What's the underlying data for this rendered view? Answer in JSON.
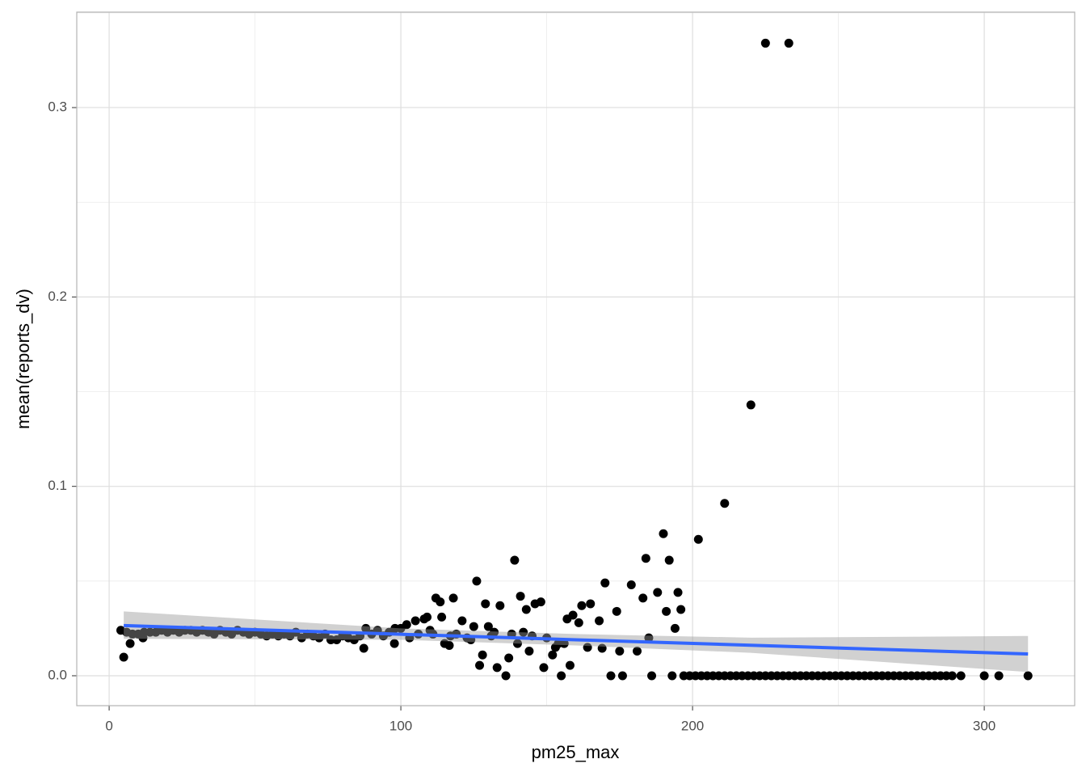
{
  "chart_data": {
    "type": "scatter",
    "x_label": "pm25_max",
    "y_label": "mean(reports_dv)",
    "xlim": [
      -11.1,
      331
    ],
    "ylim": [
      -0.0158,
      0.3504
    ],
    "xticks": [
      0,
      100,
      200,
      300
    ],
    "yticks": [
      {
        "value": 0,
        "label": "0.0"
      },
      0.1,
      0.2,
      0.3
    ],
    "grid": true,
    "color": "#000000",
    "x": [
      4,
      6,
      8,
      10,
      12,
      14,
      16,
      18,
      20,
      22,
      24,
      26,
      28,
      30,
      32,
      34,
      36,
      38,
      40,
      42,
      44,
      46,
      48,
      50,
      52,
      54,
      56,
      58,
      60,
      62,
      64,
      66,
      68,
      70,
      72,
      74,
      76,
      78,
      80,
      82,
      84,
      86,
      88,
      90,
      92,
      94,
      96,
      98,
      5,
      7.2,
      11.6,
      87.3,
      97.8,
      103,
      105,
      108,
      109,
      112,
      113.5,
      114,
      115,
      116.6,
      118,
      121,
      122.7,
      125,
      126,
      127,
      128,
      129,
      130,
      132,
      133,
      134,
      136,
      137,
      138,
      139,
      140,
      141,
      142,
      143,
      144,
      146,
      148,
      149,
      152,
      154,
      155,
      156,
      157,
      158,
      159,
      161,
      162,
      164,
      165,
      168,
      169,
      170,
      172,
      174,
      175,
      176,
      179,
      181,
      183,
      184,
      185,
      186,
      188,
      190,
      191,
      192,
      193,
      194,
      195,
      196,
      202,
      211,
      220,
      225,
      233,
      100,
      102,
      106,
      110,
      111,
      117,
      119,
      124,
      131,
      145,
      150,
      153,
      197,
      199,
      201,
      203,
      205,
      207,
      209,
      211,
      213,
      215,
      217,
      219,
      221,
      223,
      225,
      227,
      229,
      231,
      233,
      235,
      237,
      239,
      241,
      243,
      245,
      247,
      249,
      251,
      253,
      255,
      257,
      259,
      261,
      263,
      265,
      267,
      269,
      271,
      273,
      275,
      277,
      279,
      281,
      283,
      285,
      287,
      289,
      292,
      300,
      305,
      315
    ],
    "values": [
      0.024,
      0.023,
      0.022,
      0.022,
      0.023,
      0.023,
      0.023,
      0.024,
      0.023,
      0.024,
      0.023,
      0.024,
      0.024,
      0.023,
      0.024,
      0.023,
      0.022,
      0.024,
      0.023,
      0.022,
      0.024,
      0.023,
      0.022,
      0.023,
      0.022,
      0.021,
      0.022,
      0.021,
      0.022,
      0.021,
      0.023,
      0.02,
      0.022,
      0.021,
      0.02,
      0.022,
      0.019,
      0.019,
      0.021,
      0.02,
      0.019,
      0.021,
      0.025,
      0.022,
      0.024,
      0.021,
      0.023,
      0.025,
      0.0098,
      0.017,
      0.02,
      0.0145,
      0.017,
      0.02,
      0.029,
      0.03,
      0.031,
      0.041,
      0.039,
      0.031,
      0.017,
      0.016,
      0.041,
      0.029,
      0.02,
      0.026,
      0.05,
      0.0055,
      0.011,
      0.038,
      0.026,
      0.023,
      0.0043,
      0.037,
      0,
      0.0094,
      0.022,
      0.061,
      0.017,
      0.042,
      0.023,
      0.035,
      0.013,
      0.038,
      0.039,
      0.0043,
      0.011,
      0.017,
      0,
      0.017,
      0.03,
      0.0055,
      0.032,
      0.028,
      0.037,
      0.015,
      0.038,
      0.029,
      0.0145,
      0.049,
      0,
      0.034,
      0.013,
      0,
      0.048,
      0.013,
      0.041,
      0.062,
      0.02,
      0,
      0.044,
      0.075,
      0.034,
      0.061,
      0,
      0.025,
      0.044,
      0.035,
      0.072,
      0.091,
      0.143,
      0.334,
      0.334,
      0.025,
      0.027,
      0.022,
      0.024,
      0.022,
      0.021,
      0.022,
      0.019,
      0.021,
      0.021,
      0.02,
      0.015,
      0,
      0,
      0,
      0,
      0,
      0,
      0,
      0,
      0,
      0,
      0,
      0,
      0,
      0,
      0,
      0,
      0,
      0,
      0,
      0,
      0,
      0,
      0,
      0,
      0,
      0,
      0,
      0,
      0,
      0,
      0,
      0,
      0,
      0,
      0,
      0,
      0,
      0,
      0,
      0,
      0,
      0,
      0,
      0,
      0,
      0,
      0,
      0,
      0,
      0,
      0
    ],
    "smooth": {
      "color": "#3366FF",
      "band_color": "#999999",
      "x": [
        5,
        100,
        160,
        220,
        315
      ],
      "y": [
        0.0265,
        0.0219,
        0.019,
        0.0161,
        0.0115
      ],
      "lower": [
        0.0195,
        0.019,
        0.016,
        0.0121,
        0.002
      ],
      "upper": [
        0.034,
        0.025,
        0.022,
        0.0201,
        0.021
      ]
    }
  }
}
